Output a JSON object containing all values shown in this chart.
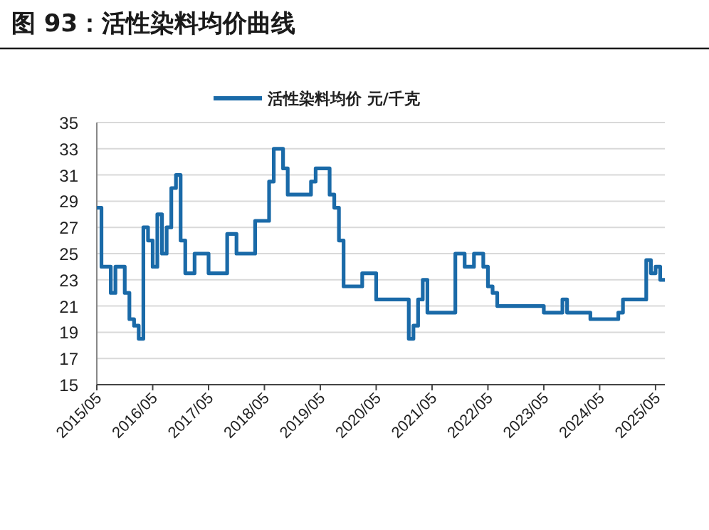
{
  "chart_data": {
    "type": "step",
    "title": "图 93：活性染料均价曲线",
    "x": [
      "2015-05",
      "2015-06",
      "2015-08",
      "2015-09",
      "2015-11",
      "2015-12",
      "2016-01",
      "2016-02",
      "2016-03",
      "2016-04",
      "2016-05",
      "2016-06",
      "2016-07",
      "2016-08",
      "2016-09",
      "2016-10",
      "2016-11",
      "2016-12",
      "2017-02",
      "2017-05",
      "2017-09",
      "2017-11",
      "2018-03",
      "2018-06",
      "2018-07",
      "2018-09",
      "2018-10",
      "2019-03",
      "2019-04",
      "2019-07",
      "2019-08",
      "2019-09",
      "2019-10",
      "2020-02",
      "2020-05",
      "2020-12",
      "2021-01",
      "2021-02",
      "2021-03",
      "2021-04",
      "2021-10",
      "2021-12",
      "2022-02",
      "2022-04",
      "2022-05",
      "2022-06",
      "2022-07",
      "2023-05",
      "2023-09",
      "2023-10",
      "2024-03",
      "2024-09",
      "2024-10",
      "2025-03",
      "2025-04",
      "2025-05",
      "2025-06",
      "2025-07"
    ],
    "series": [
      {
        "name": "活性染料均价  元/千克",
        "color": "#1a6aa8",
        "values": [
          28.5,
          24,
          22,
          24,
          22,
          20,
          19.5,
          18.5,
          27,
          26,
          24,
          28,
          25,
          27,
          30,
          31,
          26,
          23.5,
          25,
          23.5,
          26.5,
          25,
          27.5,
          30.5,
          33,
          31.5,
          29.5,
          30.5,
          31.5,
          29.5,
          28.5,
          26,
          22.5,
          23.5,
          21.5,
          18.5,
          19.5,
          21.5,
          23,
          20.5,
          25,
          24,
          25,
          24,
          22.5,
          22,
          21,
          20.5,
          21.5,
          20.5,
          20,
          20.5,
          21.5,
          24.5,
          23.5,
          24,
          23,
          23
        ]
      }
    ],
    "xlim": [
      "2015-05",
      "2025-07"
    ],
    "xticks": [
      {
        "value": "2015-05",
        "label": "2015/05"
      },
      {
        "value": "2016-05",
        "label": "2016/05"
      },
      {
        "value": "2017-05",
        "label": "2017/05"
      },
      {
        "value": "2018-05",
        "label": "2018/05"
      },
      {
        "value": "2019-05",
        "label": "2019/05"
      },
      {
        "value": "2020-05",
        "label": "2020/05"
      },
      {
        "value": "2021-05",
        "label": "2021/05"
      },
      {
        "value": "2022-05",
        "label": "2022/05"
      },
      {
        "value": "2023-05",
        "label": "2023/05"
      },
      {
        "value": "2024-05",
        "label": "2024/05"
      },
      {
        "value": "2025-05",
        "label": "2025/05"
      }
    ],
    "ylim": [
      15,
      35
    ],
    "yticks": [
      15,
      17,
      19,
      21,
      23,
      25,
      27,
      29,
      31,
      33,
      35
    ],
    "grid": "y",
    "legend": "top"
  }
}
